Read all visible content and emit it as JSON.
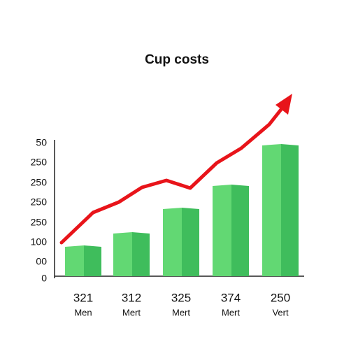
{
  "title": "Cup costs",
  "y_labels": [
    "50",
    "250",
    "250",
    "250",
    "250",
    "100",
    "00",
    "0"
  ],
  "bars": [
    {
      "value": "321",
      "label": "Men"
    },
    {
      "value": "312",
      "label": "Mert"
    },
    {
      "value": "325",
      "label": "Mert"
    },
    {
      "value": "374",
      "label": "Mert"
    },
    {
      "value": "250",
      "label": "Vert"
    }
  ]
}
